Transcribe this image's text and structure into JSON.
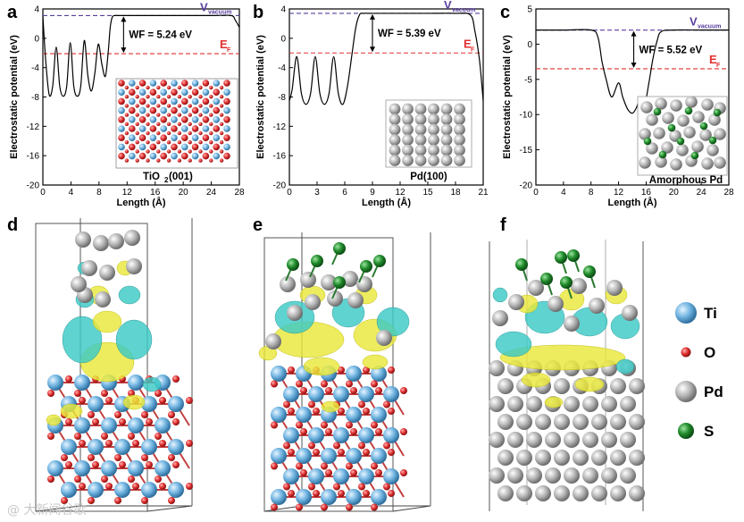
{
  "colors": {
    "ti": "#6fb3e0",
    "o": "#e03030",
    "pd": "#b0b0b0",
    "s": "#1f8a2a",
    "iso_yellow": "#e9e83a",
    "iso_cyan": "#3cc9c6",
    "vacuum_line": "#5a3fa0",
    "fermi_line": "#e03030"
  },
  "watermark": "@ 大新闻谷歌",
  "chart_data": [
    {
      "type": "line",
      "panel": "a",
      "title": "",
      "xlabel": "Length (Å)",
      "ylabel": "Electrostatic potential (eV)",
      "xlim": [
        0,
        28
      ],
      "ylim": [
        -20,
        4
      ],
      "xticks": [
        "0",
        "4",
        "8",
        "12",
        "16",
        "20",
        "24",
        "28"
      ],
      "yticks": [
        "4",
        "0",
        "-4",
        "-8",
        "-12",
        "-16",
        "-20"
      ],
      "x": [
        0,
        0.4,
        0.9,
        1.4,
        1.9,
        2.4,
        2.9,
        3.4,
        3.9,
        4.4,
        4.9,
        5.4,
        5.9,
        6.4,
        6.9,
        7.4,
        7.9,
        8.4,
        8.9,
        9.3,
        9.6,
        9.9,
        10.3,
        10.8,
        12,
        16,
        20,
        24,
        26.8,
        27.4,
        28
      ],
      "y": [
        3,
        -3,
        -7.7,
        -6.5,
        -1.2,
        -6.5,
        -7.9,
        -6.5,
        -0.6,
        -6.5,
        -7.9,
        -6.5,
        -0.3,
        -5,
        -7.2,
        -4.8,
        -0.8,
        -3.5,
        -5.2,
        -2,
        1.5,
        2.9,
        3.1,
        3.1,
        3.1,
        3.1,
        3.1,
        3.1,
        3.1,
        2.5,
        1.5
      ],
      "vacuum_level": 3.1,
      "fermi_level": -2.1,
      "vacuum_label": "V",
      "vacuum_sub": "vacuum",
      "fermi_label": "E",
      "fermi_sub": "F",
      "wf_label": "WF = 5.24 eV",
      "inset_label": "TiO",
      "inset_sub": "2",
      "inset_suffix": "(001)"
    },
    {
      "type": "line",
      "panel": "b",
      "title": "",
      "xlabel": "Length (Å)",
      "ylabel": "Electrostatic potential (eV)",
      "xlim": [
        0,
        21
      ],
      "ylim": [
        -20,
        4
      ],
      "xticks": [
        "0",
        "3",
        "6",
        "9",
        "12",
        "15",
        "18",
        "21"
      ],
      "yticks": [
        "4",
        "0",
        "-4",
        "-8",
        "-12",
        "-16",
        "-20"
      ],
      "x": [
        0,
        0.3,
        0.8,
        1.3,
        1.8,
        2.3,
        2.8,
        3.3,
        3.8,
        4.3,
        4.8,
        5.3,
        5.8,
        6.3,
        6.8,
        7.2,
        7.6,
        8,
        9,
        12,
        15,
        18,
        19.6,
        20.1,
        20.6,
        21
      ],
      "y": [
        -8.5,
        -7,
        -2.5,
        -7.5,
        -9,
        -7.5,
        -2.5,
        -7.5,
        -9,
        -7.5,
        -2.5,
        -7.5,
        -9,
        -6.5,
        -2,
        1.5,
        3.2,
        3.4,
        3.4,
        3.4,
        3.4,
        3.4,
        3.2,
        1,
        -3,
        -8.5
      ],
      "vacuum_level": 3.4,
      "fermi_level": -2.0,
      "vacuum_label": "V",
      "vacuum_sub": "vacuum",
      "fermi_label": "E",
      "fermi_sub": "F",
      "wf_label": "WF = 5.39 eV",
      "inset_label": "Pd(100)",
      "inset_sub": "",
      "inset_suffix": ""
    },
    {
      "type": "line",
      "panel": "c",
      "title": "",
      "xlabel": "Length (Å)",
      "ylabel": "Electrostatic potential (eV)",
      "xlim": [
        0,
        28
      ],
      "ylim": [
        -20,
        5
      ],
      "xticks": [
        "0",
        "4",
        "8",
        "12",
        "16",
        "20",
        "24",
        "28"
      ],
      "yticks": [
        "5",
        "0",
        "-5",
        "-10",
        "-15",
        "-20"
      ],
      "x": [
        0,
        4,
        8,
        9,
        9.6,
        10.2,
        11,
        12,
        12.6,
        13.3,
        14,
        14.6,
        15.2,
        15.8,
        16.4,
        17,
        17.6,
        18.2,
        20,
        24,
        28
      ],
      "y": [
        2,
        2,
        2,
        1,
        -2.5,
        -5,
        -7.5,
        -5.5,
        -7.5,
        -9.2,
        -9.8,
        -9,
        -7.5,
        -8.5,
        -5.5,
        -2,
        0.5,
        1.8,
        2,
        2,
        2
      ],
      "vacuum_level": 2.0,
      "fermi_level": -3.5,
      "vacuum_label": "V",
      "vacuum_sub": "vacuum",
      "fermi_label": "E",
      "fermi_sub": "F",
      "wf_label": "WF = 5.52 eV",
      "inset_label": "Amorphous Pd",
      "inset_sub": "",
      "inset_suffix": ""
    }
  ],
  "panels": {
    "a": "a",
    "b": "b",
    "c": "c",
    "d": "d",
    "e": "e",
    "f": "f"
  },
  "legend": [
    {
      "label": "Ti",
      "color_key": "ti",
      "size": "large"
    },
    {
      "label": "O",
      "color_key": "o",
      "size": "small"
    },
    {
      "label": "Pd",
      "color_key": "pd",
      "size": "large"
    },
    {
      "label": "S",
      "color_key": "s",
      "size": "medium"
    }
  ]
}
